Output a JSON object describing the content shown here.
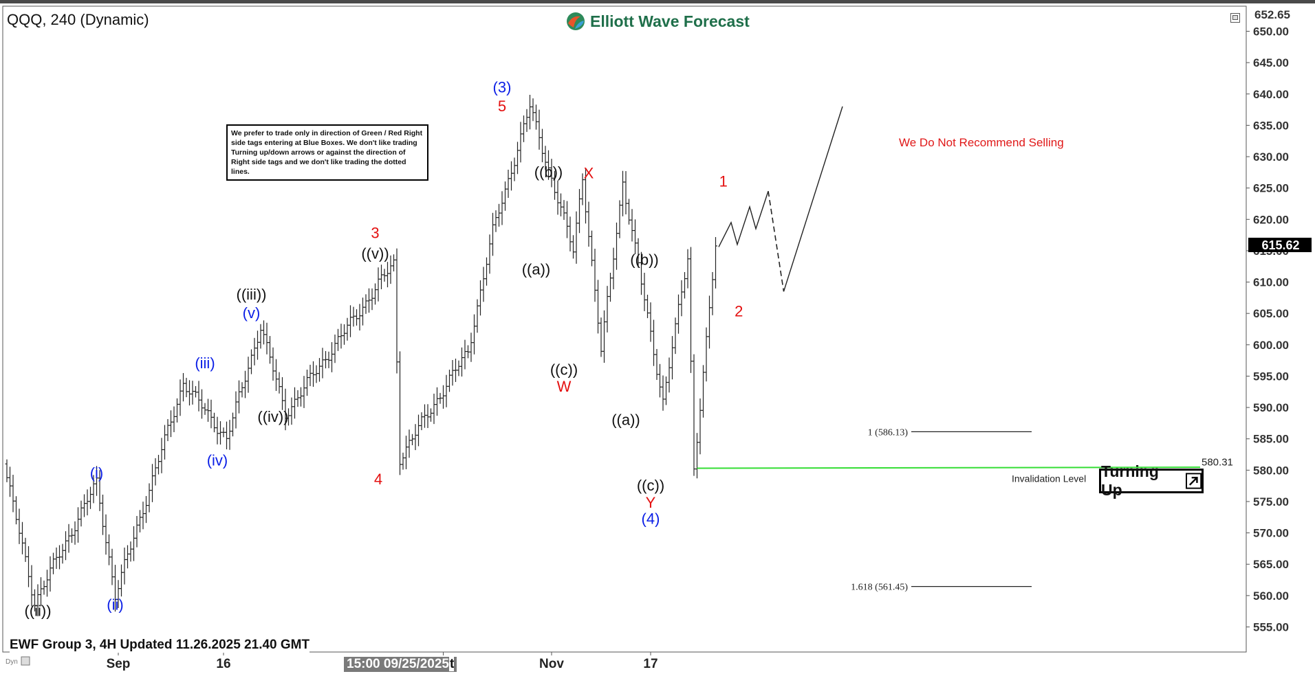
{
  "header": {
    "symbol_title": "QQQ, 240 (Dynamic)",
    "logo_text": "Elliott Wave Forecast",
    "last_price": "615.62",
    "top_price": "652.65"
  },
  "disclaimer": "We prefer to trade only in direction of Green / Red Right side tags entering at Blue Boxes. We don't like trading Turning up/down arrows or against the direction of Right side tags and we don't like trading the dotted lines.",
  "recommendation": "We Do Not Recommend Selling",
  "turning_up_label": "Turning Up",
  "footer": {
    "update_label": "EWF Group 3, 4H Updated 11.26.2025 21.40 GMT",
    "crosshair_date": "15:00 09/25/2025",
    "crosshair_suffix": "t",
    "dyn_label": "Dyn"
  },
  "colors": {
    "wave_black": "#111111",
    "wave_blue": "#0a1ee6",
    "wave_red": "#e41010",
    "invalidation_green": "#33dd33",
    "recommendation_red": "#e01818",
    "logo_green": "#1f6f4a"
  },
  "chart_data": {
    "type": "ohlc",
    "ylim": [
      551,
      654
    ],
    "y_ticks": [
      650,
      645,
      640,
      635,
      630,
      625,
      620,
      615,
      610,
      605,
      600,
      595,
      590,
      585,
      580,
      575,
      570,
      565,
      560,
      555
    ],
    "x_tick_labels": [
      "Sep",
      "16",
      "16",
      "Nov",
      "17"
    ],
    "x_tick_bar_index": [
      36,
      70,
      141,
      176,
      208
    ],
    "bar_count": 230,
    "anchors": [
      {
        "bar": 0,
        "price": 581
      },
      {
        "bar": 10,
        "price": 559
      },
      {
        "bar": 30,
        "price": 578
      },
      {
        "bar": 36,
        "price": 560
      },
      {
        "bar": 58,
        "price": 594
      },
      {
        "bar": 72,
        "price": 585
      },
      {
        "bar": 83,
        "price": 603
      },
      {
        "bar": 91,
        "price": 589
      },
      {
        "bar": 126,
        "price": 613
      },
      {
        "bar": 128,
        "price": 582
      },
      {
        "bar": 150,
        "price": 599
      },
      {
        "bar": 158,
        "price": 618
      },
      {
        "bar": 170,
        "price": 638
      },
      {
        "bar": 184,
        "price": 615
      },
      {
        "bar": 187,
        "price": 627
      },
      {
        "bar": 193,
        "price": 599
      },
      {
        "bar": 200,
        "price": 626
      },
      {
        "bar": 213,
        "price": 591
      },
      {
        "bar": 221,
        "price": 614
      },
      {
        "bar": 223,
        "price": 580.3
      },
      {
        "bar": 230,
        "price": 615.6
      }
    ],
    "projection": {
      "solid_path": [
        {
          "bar": 230,
          "price": 615.6
        },
        {
          "bar": 234,
          "price": 619.5
        },
        {
          "bar": 236,
          "price": 616
        },
        {
          "bar": 240,
          "price": 622
        },
        {
          "bar": 242,
          "price": 618.5
        },
        {
          "bar": 246,
          "price": 624.5
        }
      ],
      "dashed_path": [
        {
          "bar": 246,
          "price": 624.5
        },
        {
          "bar": 251,
          "price": 608.5
        }
      ],
      "rally_path": [
        {
          "bar": 251,
          "price": 608.5
        },
        {
          "bar": 270,
          "price": 638
        }
      ]
    },
    "levels": [
      {
        "label": "1 (586.13)",
        "price": 586.13
      },
      {
        "label": "1.618 (561.45)",
        "price": 561.45
      }
    ],
    "invalidation": {
      "price": 580.31,
      "value_label": "580.31",
      "text": "Invalidation Level"
    },
    "wave_labels": [
      {
        "text": "((ii))",
        "bar": 10,
        "price": 557.5,
        "color": "black"
      },
      {
        "text": "(i)",
        "bar": 29,
        "price": 579.5,
        "color": "blue"
      },
      {
        "text": "(ii)",
        "bar": 35,
        "price": 558.5,
        "color": "blue"
      },
      {
        "text": "(iii)",
        "bar": 64,
        "price": 597,
        "color": "blue"
      },
      {
        "text": "(iv)",
        "bar": 68,
        "price": 581.5,
        "color": "blue"
      },
      {
        "text": "(v)",
        "bar": 79,
        "price": 605,
        "color": "blue"
      },
      {
        "text": "((iii))",
        "bar": 79,
        "price": 608,
        "color": "black"
      },
      {
        "text": "((iv))",
        "bar": 86,
        "price": 588.5,
        "color": "black"
      },
      {
        "text": "((v))",
        "bar": 119,
        "price": 614.5,
        "color": "black"
      },
      {
        "text": "3",
        "bar": 119,
        "price": 617.8,
        "color": "red"
      },
      {
        "text": "4",
        "bar": 120,
        "price": 578.5,
        "color": "red"
      },
      {
        "text": "(3)",
        "bar": 160,
        "price": 641,
        "color": "blue"
      },
      {
        "text": "5",
        "bar": 160,
        "price": 638,
        "color": "red"
      },
      {
        "text": "((b))",
        "bar": 175,
        "price": 627.5,
        "color": "black"
      },
      {
        "text": "((a))",
        "bar": 171,
        "price": 612,
        "color": "black"
      },
      {
        "text": "((c))",
        "bar": 180,
        "price": 596,
        "color": "black"
      },
      {
        "text": "W",
        "bar": 180,
        "price": 593.3,
        "color": "red"
      },
      {
        "text": "X",
        "bar": 188,
        "price": 627.3,
        "color": "red"
      },
      {
        "text": "((b))",
        "bar": 206,
        "price": 613.5,
        "color": "black"
      },
      {
        "text": "((a))",
        "bar": 200,
        "price": 588,
        "color": "black"
      },
      {
        "text": "((c))",
        "bar": 208,
        "price": 577.5,
        "color": "black"
      },
      {
        "text": "Y",
        "bar": 208,
        "price": 574.8,
        "color": "red"
      },
      {
        "text": "(4)",
        "bar": 208,
        "price": 572.2,
        "color": "blue"
      },
      {
        "text": "1",
        "bar": 231.5,
        "price": 626,
        "color": "red"
      },
      {
        "text": "2",
        "bar": 236.5,
        "price": 605.3,
        "color": "red"
      }
    ]
  }
}
